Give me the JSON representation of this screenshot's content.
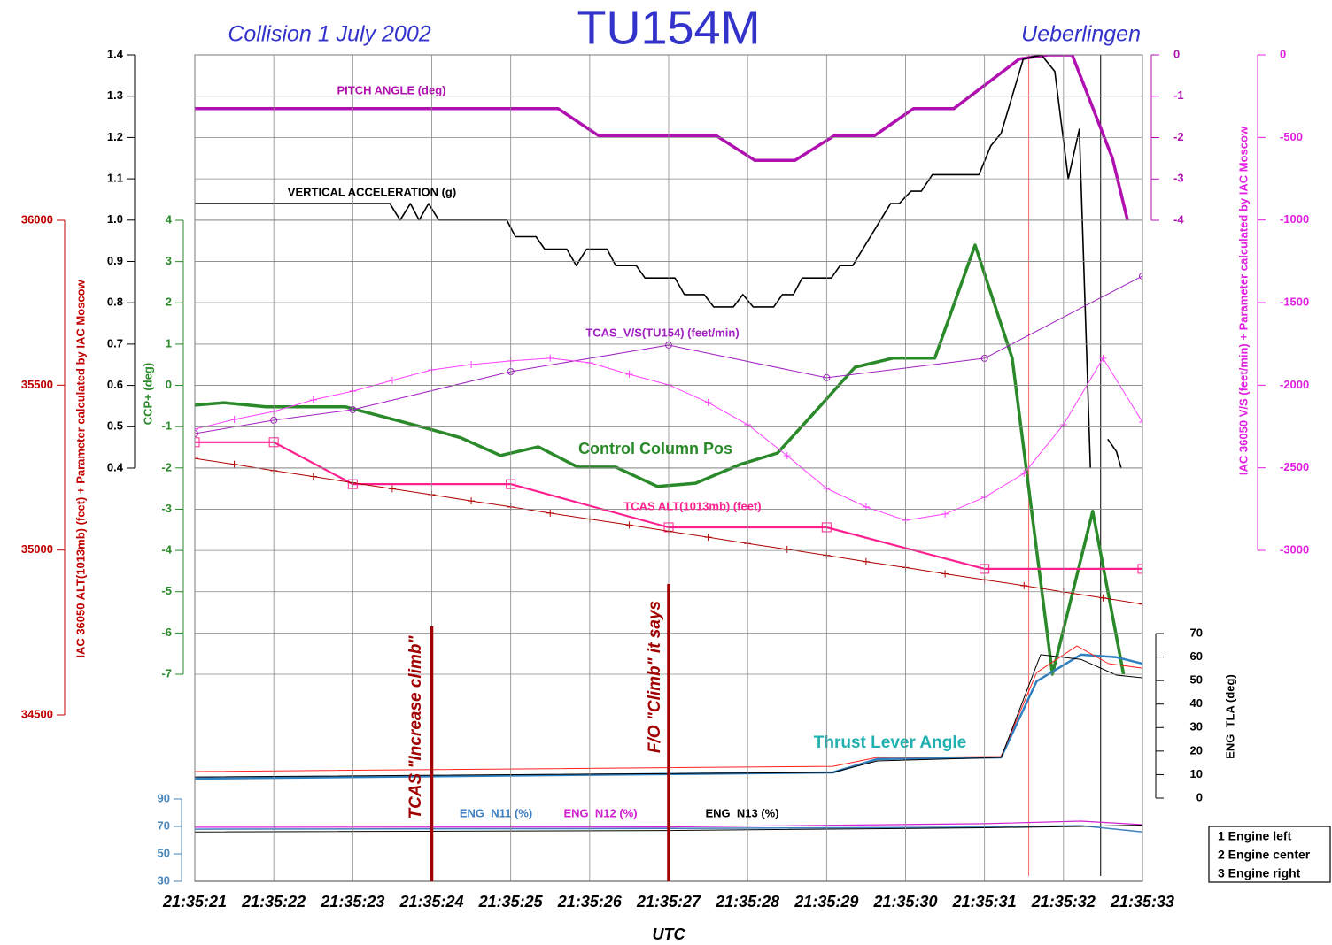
{
  "chart_data": {
    "type": "line",
    "title": "TU154M",
    "subtitle_left": "Collision 1 July 2002",
    "subtitle_right": "Ueberlingen",
    "xlabel": "UTC",
    "xlim": [
      21,
      33
    ],
    "xticks": [
      {
        "value": 21,
        "label": "21:35:21"
      },
      {
        "value": 22,
        "label": "21:35:22"
      },
      {
        "value": 23,
        "label": "21:35:23"
      },
      {
        "value": 24,
        "label": "21:35:24"
      },
      {
        "value": 25,
        "label": "21:35:25"
      },
      {
        "value": 26,
        "label": "21:35:26"
      },
      {
        "value": 27,
        "label": "21:35:27"
      },
      {
        "value": 28,
        "label": "21:35:28"
      },
      {
        "value": 29,
        "label": "21:35:29"
      },
      {
        "value": 30,
        "label": "21:35:30"
      },
      {
        "value": 31,
        "label": "21:35:31"
      },
      {
        "value": 32,
        "label": "21:35:32"
      },
      {
        "value": 33,
        "label": "21:35:33"
      }
    ],
    "grid": true,
    "axes": {
      "alt": {
        "label": "IAC 36050 ALT(1013mb) (feet) + Parameter calculated by IAC Moscow",
        "lim": [
          34500,
          36000
        ],
        "ticks": [
          34500,
          35000,
          35500,
          36000
        ],
        "color": "#c00000"
      },
      "g": {
        "lim": [
          0.4,
          1.4
        ],
        "ticks": [
          0.4,
          0.5,
          0.6,
          0.7,
          0.8,
          0.9,
          {
            "value": 1,
            "label": "1.0"
          },
          1.1,
          1.2,
          1.3,
          1.4
        ],
        "color": "#000000"
      },
      "ccp": {
        "label": "CCP+ (deg)",
        "lim": [
          -7,
          4
        ],
        "ticks": [
          -7,
          -6,
          -5,
          -4,
          -3,
          -2,
          -1,
          0,
          1,
          2,
          3,
          4
        ],
        "color": "#2a8a2a"
      },
      "pitch": {
        "lim": [
          -4,
          0
        ],
        "ticks": [
          -4,
          -3,
          -2,
          -1,
          0
        ],
        "color": "#b010b0"
      },
      "vs": {
        "label": "IAC 36050 V/S (feet/min) + Parameter calculated by IAC Moscow",
        "lim": [
          -3000,
          0
        ],
        "ticks": [
          -3000,
          -2500,
          -2000,
          -1500,
          -1000,
          -500,
          0
        ],
        "color": "#e020e0"
      },
      "tla": {
        "label": "ENG_TLA (deg)",
        "lim": [
          0,
          70
        ],
        "ticks": [
          0,
          10,
          20,
          30,
          40,
          50,
          60,
          70
        ],
        "color": "#000000"
      },
      "n1": {
        "lim": [
          30,
          90
        ],
        "ticks": [
          30,
          50,
          70,
          90
        ],
        "color": "#4a86b8"
      }
    },
    "series": [
      {
        "name": "PITCH ANGLE (deg)",
        "axis": "pitch",
        "color": "#b010b0",
        "width": 3.5,
        "x": [
          21,
          25.6,
          26.11,
          27.6,
          28.09,
          28.6,
          29.1,
          29.61,
          30.1,
          30.61,
          31.44,
          31.8,
          32.11,
          32.62,
          32.81
        ],
        "values": [
          -1.3,
          -1.3,
          -1.95,
          -1.95,
          -2.55,
          -2.55,
          -1.95,
          -1.95,
          -1.3,
          -1.3,
          -0.1,
          0,
          0,
          -2.5,
          -4
        ]
      },
      {
        "name": "VERTICAL ACCELERATION (g)",
        "axis": "g",
        "color": "#000000",
        "width": 1.6,
        "x": [
          21,
          23.47,
          23.6,
          23.73,
          23.84,
          23.96,
          24.09,
          24.95,
          25.06,
          25.32,
          25.43,
          25.71,
          25.83,
          25.96,
          26.22,
          26.33,
          26.59,
          26.7,
          27.08,
          27.2,
          27.45,
          27.57,
          27.82,
          27.94,
          28.07,
          28.33,
          28.44,
          28.58,
          28.69,
          29.06,
          29.17,
          29.33,
          29.81,
          29.92,
          30.07,
          30.2,
          30.34,
          30.93,
          31.08,
          31.21,
          31.49,
          31.72,
          31.89,
          32.06,
          32.2,
          32.34,
          32.45,
          32.56,
          32.67,
          32.73
        ],
        "values": [
          1.04,
          1.04,
          1.0,
          1.04,
          1.0,
          1.04,
          1.0,
          1.0,
          0.96,
          0.96,
          0.93,
          0.93,
          0.89,
          0.93,
          0.93,
          0.89,
          0.89,
          0.86,
          0.86,
          0.82,
          0.82,
          0.79,
          0.79,
          0.82,
          0.79,
          0.79,
          0.82,
          0.82,
          0.86,
          0.86,
          0.89,
          0.89,
          1.04,
          1.04,
          1.07,
          1.07,
          1.11,
          1.11,
          1.18,
          1.21,
          1.39,
          1.4,
          1.36,
          1.1,
          1.22,
          0.4,
          null,
          0.47,
          0.44,
          0.4
        ]
      },
      {
        "name": "Control Column Pos",
        "axis": "ccp",
        "color": "#2a8a2a",
        "width": 3.5,
        "x": [
          21,
          21.37,
          21.9,
          22.91,
          23.86,
          24.37,
          24.87,
          25.35,
          25.85,
          26.33,
          26.86,
          27.34,
          27.9,
          28.38,
          28.91,
          29.36,
          29.84,
          30.37,
          30.88,
          31.35,
          31.86,
          32.37,
          32.76
        ],
        "values": [
          -0.48,
          -0.42,
          -0.52,
          -0.52,
          -1.0,
          -1.27,
          -1.7,
          -1.49,
          -1.98,
          -1.98,
          -2.45,
          -2.37,
          -1.92,
          -1.64,
          -0.52,
          0.44,
          0.66,
          0.66,
          3.4,
          0.66,
          -7,
          -3.05,
          -7
        ]
      },
      {
        "name": "TCAS_V/S(TU154) (feet/min)",
        "axis": "vs",
        "color": "#a020c0",
        "width": 1,
        "marker": "circle",
        "x": [
          21,
          22,
          23,
          25,
          27,
          29,
          31,
          33
        ],
        "values": [
          -2293,
          -2212,
          -2148,
          -1918,
          -1757,
          -1955,
          -1837,
          -1339
        ]
      },
      {
        "axis": "vs",
        "color": "#ff40ff",
        "width": 1,
        "marker": "plus",
        "x": [
          21,
          21.5,
          22,
          22.5,
          23,
          23.5,
          24,
          24.5,
          25,
          25.5,
          26,
          26.5,
          27,
          27.5,
          28,
          28.5,
          29,
          29.5,
          30,
          30.5,
          31,
          31.5,
          32,
          32.5,
          33
        ],
        "values": [
          -2266,
          -2207,
          -2159,
          -2089,
          -2036,
          -1971,
          -1907,
          -1875,
          -1853,
          -1837,
          -1864,
          -1934,
          -1998,
          -2105,
          -2239,
          -2427,
          -2625,
          -2737,
          -2818,
          -2780,
          -2678,
          -2534,
          -2239,
          -1837,
          -2223
        ]
      },
      {
        "name": "TCAS ALT(1013mb) (feet)",
        "axis": "alt",
        "color": "#ff2090",
        "width": 2.2,
        "marker": "square",
        "x": [
          21,
          22,
          23,
          25,
          27,
          29,
          31,
          33
        ],
        "values": [
          35327,
          35327,
          35200,
          35200,
          35069,
          35069,
          34943,
          34943
        ]
      },
      {
        "axis": "alt",
        "color": "#b00000",
        "width": 1,
        "marker": "plus",
        "x": [
          21,
          21.5,
          22,
          22.5,
          23,
          23.5,
          24,
          24.5,
          25,
          25.5,
          26,
          26.5,
          27,
          27.5,
          28,
          28.5,
          29,
          29.5,
          30,
          30.5,
          31,
          31.5,
          32,
          32.5,
          33
        ],
        "values": [
          35278,
          35260,
          35241,
          35223,
          35204,
          35186,
          35168,
          35149,
          35131,
          35112,
          35094,
          35076,
          35057,
          35039,
          35020,
          35002,
          34984,
          34965,
          34947,
          34928,
          34910,
          34892,
          34873,
          34855,
          34836
        ]
      },
      {
        "axis": "tla",
        "color": "#3080c0",
        "width": 2.5,
        "x": [
          21,
          29.08,
          29.64,
          31.21,
          31.66,
          32.22,
          32.67,
          33
        ],
        "values": [
          8.3,
          10.9,
          16.6,
          17.3,
          49.7,
          61,
          59.9,
          57.2
        ]
      },
      {
        "axis": "tla",
        "color": "#ff2020",
        "width": 1,
        "x": [
          21,
          29.08,
          29.64,
          31.21,
          31.66,
          32.17,
          32.57,
          33
        ],
        "values": [
          11.3,
          13.5,
          17.3,
          17.7,
          53.4,
          64.7,
          57.2,
          55.3
        ]
      },
      {
        "axis": "tla",
        "color": "#000000",
        "width": 1,
        "x": [
          21,
          29.08,
          29.64,
          31.21,
          31.71,
          32.22,
          32.67,
          33
        ],
        "values": [
          9,
          10.9,
          15.8,
          17.3,
          61,
          59,
          52.3,
          51.2
        ]
      },
      {
        "name": "ENG_N11 (%)",
        "axis": "n1",
        "color": "#4080c0",
        "width": 1.5,
        "x": [
          21,
          27,
          31,
          32.22,
          33
        ],
        "values": [
          68,
          68.5,
          69.5,
          70.6,
          66
        ]
      },
      {
        "name": "ENG_N12 (%)",
        "axis": "n1",
        "color": "#d020d0",
        "width": 1.2,
        "x": [
          21,
          27,
          31,
          32.22,
          33
        ],
        "values": [
          69.4,
          69.6,
          72,
          73.9,
          71.3
        ]
      },
      {
        "name": "ENG_N13 (%)",
        "axis": "n1",
        "color": "#000000",
        "width": 1,
        "x": [
          21,
          27,
          31,
          32.22,
          33
        ],
        "values": [
          66,
          67,
          69,
          70,
          71
        ]
      }
    ],
    "tla_title": "Thrust Lever Angle",
    "annotations": [
      {
        "text": "TCAS \"Increase climb\"",
        "x": 24.0,
        "color": "#a00000"
      },
      {
        "text": "F/O \"Climb\" it says",
        "x": 27.0,
        "color": "#a00000"
      }
    ],
    "vlines": [
      {
        "x": 31.56,
        "color": "#ff6060"
      },
      {
        "x": 32.47,
        "color": "#000000"
      }
    ],
    "engines": [
      "1 Engine left",
      "2 Engine center",
      "3 Engine right"
    ]
  }
}
